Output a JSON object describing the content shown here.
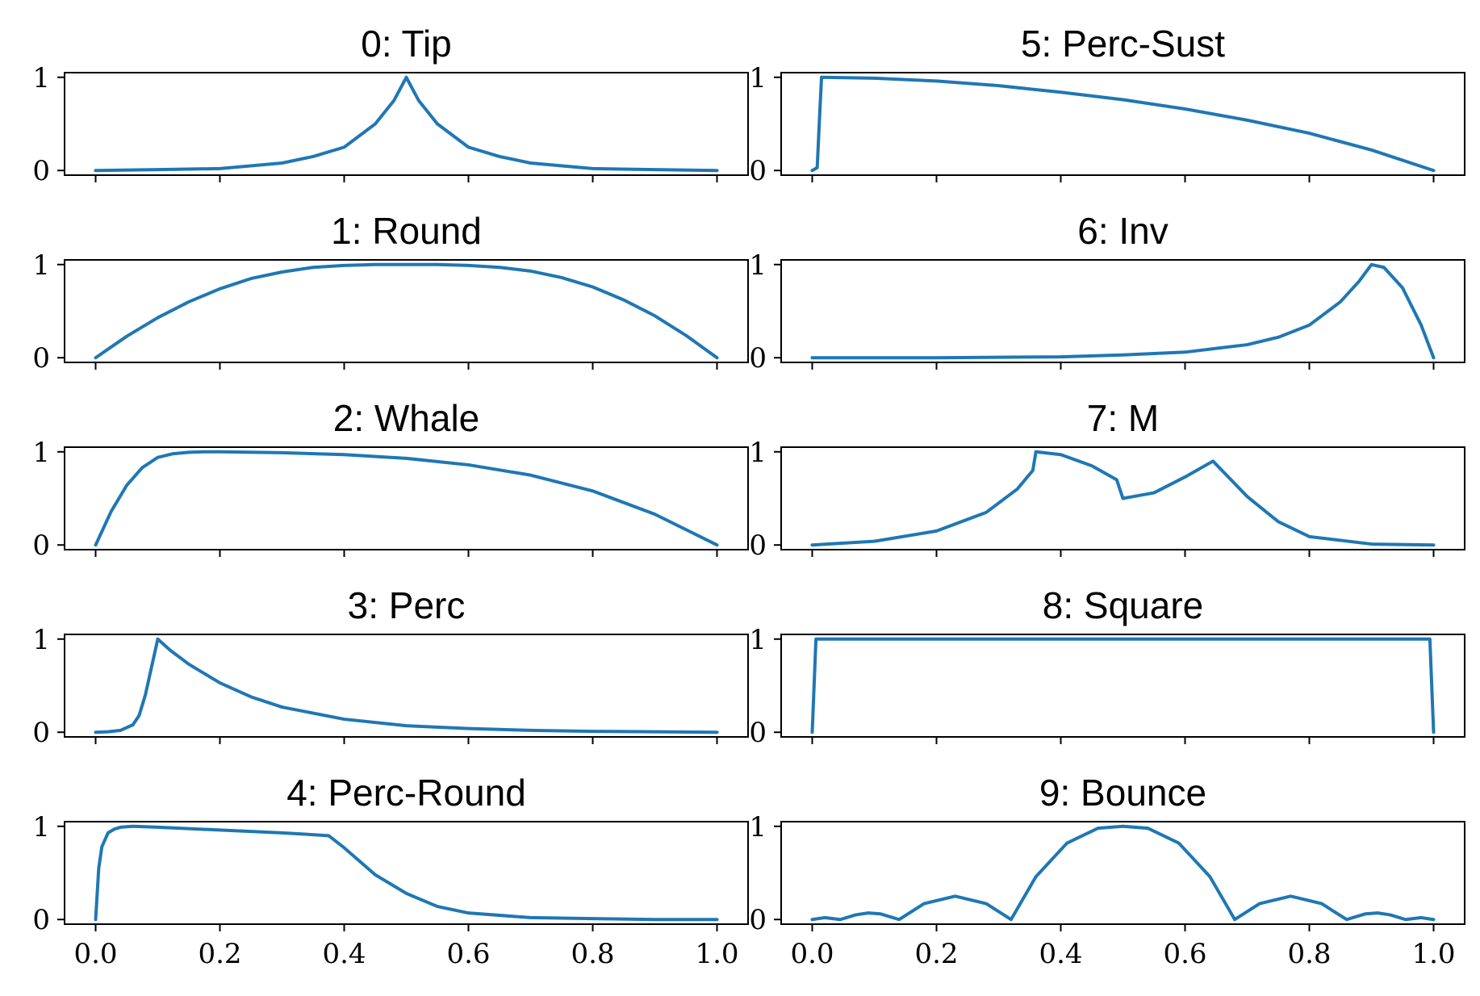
{
  "colors": {
    "line": "#1f77b4"
  },
  "chart_data": [
    {
      "type": "line",
      "title": "0: Tip",
      "xlim": [
        -0.05,
        1.05
      ],
      "ylim": [
        -0.05,
        1.05
      ],
      "xticks": [
        "0.0",
        "0.2",
        "0.4",
        "0.6",
        "0.8",
        "1.0"
      ],
      "yticks": [
        "0",
        "1"
      ],
      "show_xticklabels": false,
      "x": [
        0,
        0.1,
        0.2,
        0.3,
        0.35,
        0.4,
        0.45,
        0.48,
        0.5,
        0.52,
        0.55,
        0.6,
        0.65,
        0.7,
        0.8,
        0.9,
        1
      ],
      "y": [
        0,
        0.01,
        0.02,
        0.08,
        0.15,
        0.25,
        0.5,
        0.75,
        1,
        0.75,
        0.5,
        0.25,
        0.15,
        0.08,
        0.02,
        0.01,
        0
      ]
    },
    {
      "type": "line",
      "title": "1: Round",
      "xlim": [
        -0.05,
        1.05
      ],
      "ylim": [
        -0.05,
        1.05
      ],
      "xticks": [
        "0.0",
        "0.2",
        "0.4",
        "0.6",
        "0.8",
        "1.0"
      ],
      "yticks": [
        "0",
        "1"
      ],
      "show_xticklabels": false,
      "x": [
        0,
        0.05,
        0.1,
        0.15,
        0.2,
        0.25,
        0.3,
        0.35,
        0.4,
        0.45,
        0.5,
        0.55,
        0.6,
        0.65,
        0.7,
        0.75,
        0.8,
        0.85,
        0.9,
        0.95,
        1
      ],
      "y": [
        0,
        0.23,
        0.43,
        0.6,
        0.74,
        0.85,
        0.92,
        0.97,
        0.99,
        1,
        1,
        1,
        0.99,
        0.97,
        0.93,
        0.86,
        0.76,
        0.62,
        0.45,
        0.24,
        0
      ]
    },
    {
      "type": "line",
      "title": "2: Whale",
      "xlim": [
        -0.05,
        1.05
      ],
      "ylim": [
        -0.05,
        1.05
      ],
      "xticks": [
        "0.0",
        "0.2",
        "0.4",
        "0.6",
        "0.8",
        "1.0"
      ],
      "yticks": [
        "0",
        "1"
      ],
      "show_xticklabels": false,
      "x": [
        0,
        0.025,
        0.05,
        0.075,
        0.1,
        0.125,
        0.15,
        0.175,
        0.2,
        0.3,
        0.4,
        0.5,
        0.6,
        0.7,
        0.8,
        0.9,
        1
      ],
      "y": [
        0,
        0.36,
        0.64,
        0.83,
        0.94,
        0.98,
        0.995,
        1,
        1,
        0.99,
        0.97,
        0.93,
        0.86,
        0.75,
        0.58,
        0.33,
        0
      ]
    },
    {
      "type": "line",
      "title": "3: Perc",
      "xlim": [
        -0.05,
        1.05
      ],
      "ylim": [
        -0.05,
        1.05
      ],
      "xticks": [
        "0.0",
        "0.2",
        "0.4",
        "0.6",
        "0.8",
        "1.0"
      ],
      "yticks": [
        "0",
        "1"
      ],
      "show_xticklabels": false,
      "x": [
        0,
        0.02,
        0.04,
        0.06,
        0.07,
        0.08,
        0.09,
        0.1,
        0.12,
        0.15,
        0.2,
        0.25,
        0.3,
        0.4,
        0.5,
        0.6,
        0.7,
        0.8,
        0.9,
        1
      ],
      "y": [
        0,
        0.005,
        0.02,
        0.08,
        0.18,
        0.4,
        0.7,
        1,
        0.88,
        0.73,
        0.53,
        0.38,
        0.27,
        0.14,
        0.07,
        0.04,
        0.02,
        0.01,
        0.005,
        0
      ]
    },
    {
      "type": "line",
      "title": "4: Perc-Round",
      "xlim": [
        -0.05,
        1.05
      ],
      "ylim": [
        -0.05,
        1.05
      ],
      "xticks": [
        "0.0",
        "0.2",
        "0.4",
        "0.6",
        "0.8",
        "1.0"
      ],
      "yticks": [
        "0",
        "1"
      ],
      "show_xticklabels": true,
      "x": [
        0,
        0.005,
        0.01,
        0.02,
        0.03,
        0.04,
        0.06,
        0.1,
        0.2,
        0.3,
        0.375,
        0.4,
        0.45,
        0.5,
        0.55,
        0.6,
        0.7,
        0.8,
        0.9,
        1
      ],
      "y": [
        0,
        0.55,
        0.78,
        0.93,
        0.97,
        0.99,
        1,
        0.99,
        0.96,
        0.93,
        0.9,
        0.77,
        0.48,
        0.28,
        0.14,
        0.07,
        0.02,
        0.01,
        0,
        0
      ]
    },
    {
      "type": "line",
      "title": "5: Perc-Sust",
      "xlim": [
        -0.05,
        1.05
      ],
      "ylim": [
        -0.05,
        1.05
      ],
      "xticks": [
        "0.0",
        "0.2",
        "0.4",
        "0.6",
        "0.8",
        "1.0"
      ],
      "yticks": [
        "0",
        "1"
      ],
      "show_xticklabels": false,
      "x": [
        0,
        0.008,
        0.012,
        0.015,
        0.1,
        0.2,
        0.3,
        0.4,
        0.5,
        0.6,
        0.7,
        0.8,
        0.9,
        1
      ],
      "y": [
        0,
        0.03,
        0.6,
        1,
        0.99,
        0.96,
        0.91,
        0.84,
        0.76,
        0.66,
        0.54,
        0.4,
        0.22,
        0
      ]
    },
    {
      "type": "line",
      "title": "6: Inv",
      "xlim": [
        -0.05,
        1.05
      ],
      "ylim": [
        -0.05,
        1.05
      ],
      "xticks": [
        "0.0",
        "0.2",
        "0.4",
        "0.6",
        "0.8",
        "1.0"
      ],
      "yticks": [
        "0",
        "1"
      ],
      "show_xticklabels": false,
      "x": [
        0,
        0.2,
        0.4,
        0.5,
        0.6,
        0.7,
        0.75,
        0.8,
        0.85,
        0.88,
        0.9,
        0.92,
        0.95,
        0.98,
        1
      ],
      "y": [
        0,
        0,
        0.01,
        0.03,
        0.06,
        0.14,
        0.22,
        0.35,
        0.6,
        0.82,
        1,
        0.97,
        0.75,
        0.35,
        0
      ]
    },
    {
      "type": "line",
      "title": "7: M",
      "xlim": [
        -0.05,
        1.05
      ],
      "ylim": [
        -0.05,
        1.05
      ],
      "xticks": [
        "0.0",
        "0.2",
        "0.4",
        "0.6",
        "0.8",
        "1.0"
      ],
      "yticks": [
        "0",
        "1"
      ],
      "show_xticklabels": false,
      "x": [
        0,
        0.1,
        0.2,
        0.28,
        0.33,
        0.355,
        0.36,
        0.4,
        0.45,
        0.49,
        0.5,
        0.55,
        0.6,
        0.645,
        0.7,
        0.75,
        0.8,
        0.9,
        1
      ],
      "y": [
        0,
        0.04,
        0.15,
        0.35,
        0.6,
        0.8,
        1,
        0.97,
        0.85,
        0.7,
        0.5,
        0.56,
        0.73,
        0.9,
        0.52,
        0.25,
        0.09,
        0.01,
        0
      ]
    },
    {
      "type": "line",
      "title": "8: Square",
      "xlim": [
        -0.05,
        1.05
      ],
      "ylim": [
        -0.05,
        1.05
      ],
      "xticks": [
        "0.0",
        "0.2",
        "0.4",
        "0.6",
        "0.8",
        "1.0"
      ],
      "yticks": [
        "0",
        "1"
      ],
      "show_xticklabels": false,
      "x": [
        0,
        0.003,
        0.006,
        0.5,
        0.994,
        0.997,
        1
      ],
      "y": [
        0,
        0.5,
        1,
        1,
        1,
        0.5,
        0
      ]
    },
    {
      "type": "line",
      "title": "9: Bounce",
      "xlim": [
        -0.05,
        1.05
      ],
      "ylim": [
        -0.05,
        1.05
      ],
      "xticks": [
        "0.0",
        "0.2",
        "0.4",
        "0.6",
        "0.8",
        "1.0"
      ],
      "yticks": [
        "0",
        "1"
      ],
      "show_xticklabels": true,
      "x": [
        0,
        0.02,
        0.045,
        0.07,
        0.09,
        0.11,
        0.14,
        0.18,
        0.23,
        0.28,
        0.32,
        0.36,
        0.41,
        0.46,
        0.5,
        0.54,
        0.59,
        0.64,
        0.68,
        0.72,
        0.77,
        0.82,
        0.86,
        0.89,
        0.91,
        0.93,
        0.955,
        0.98,
        1
      ],
      "y": [
        0,
        0.02,
        0,
        0.05,
        0.07,
        0.06,
        0,
        0.17,
        0.25,
        0.17,
        0,
        0.46,
        0.82,
        0.98,
        1,
        0.98,
        0.82,
        0.46,
        0,
        0.17,
        0.25,
        0.17,
        0,
        0.06,
        0.07,
        0.05,
        0,
        0.02,
        0
      ]
    }
  ]
}
